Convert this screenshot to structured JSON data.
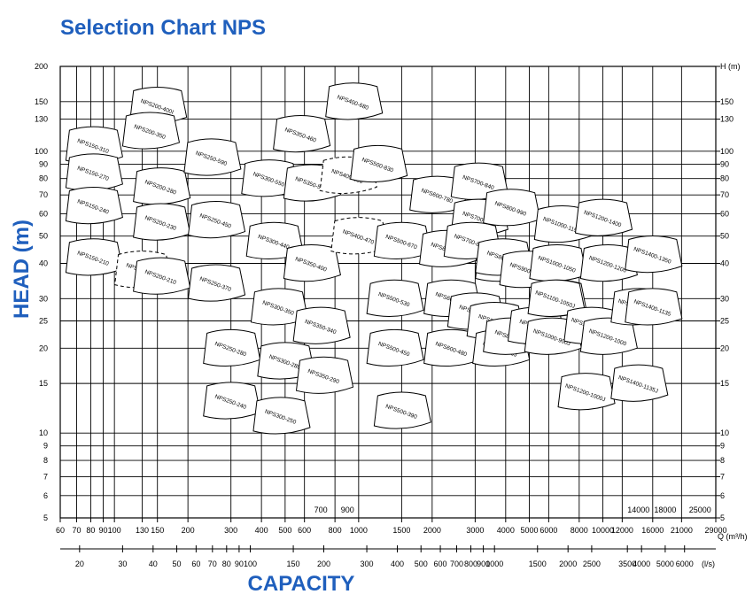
{
  "chart_data": {
    "type": "selection-chart",
    "title": "Selection Chart NPS",
    "ylabel": "HEAD (m)",
    "xlabel": "CAPACITY",
    "y_unit": "H (m)",
    "x_unit_m3h": "Q (m³/h)",
    "x_unit_ls": "(l/s)",
    "x_scale": "log",
    "y_scale": "log",
    "xlim_m3h": [
      60,
      29000
    ],
    "ylim_m": [
      5,
      200
    ],
    "grid": true,
    "y_ticks_left": [
      "5",
      "6",
      "7",
      "8",
      "9",
      "10",
      "15",
      "20",
      "25",
      "30",
      "40",
      "50",
      "60",
      "70",
      "80",
      "90",
      "100",
      "130",
      "150",
      "200"
    ],
    "y_ticks_right": [
      "5",
      "6",
      "7",
      "8",
      "9",
      "10",
      "15",
      "20",
      "25",
      "30",
      "40",
      "50",
      "60",
      "70",
      "80",
      "90",
      "100",
      "130",
      "150",
      "H (m)"
    ],
    "x_ticks_m3h": [
      "60",
      "70",
      "80",
      "90",
      "100",
      "130",
      "150",
      "200",
      "300",
      "400",
      "500",
      "600",
      "800",
      "1000",
      "1500",
      "2000",
      "3000",
      "4000",
      "5000",
      "6000",
      "8000",
      "10000",
      "12000",
      "16000",
      "21000",
      "29000"
    ],
    "x_ticks_ls": [
      "20",
      "30",
      "40",
      "50",
      "60",
      "70",
      "80",
      "90",
      "100",
      "150",
      "200",
      "300",
      "400",
      "500",
      "600",
      "700",
      "800",
      "900",
      "1000",
      "1500",
      "2000",
      "2500",
      "3500",
      "4000",
      "5000",
      "6000"
    ],
    "x_inner_labels": [
      "700",
      "900",
      "14000",
      "18000",
      "25000"
    ],
    "pumps": [
      {
        "name": "NPS200-400I",
        "q": 150,
        "h": 145
      },
      {
        "name": "NPS200-350",
        "q": 140,
        "h": 118
      },
      {
        "name": "NPS150-310",
        "q": 82,
        "h": 105
      },
      {
        "name": "NPS150-270",
        "q": 82,
        "h": 84
      },
      {
        "name": "NPS150-240",
        "q": 82,
        "h": 64
      },
      {
        "name": "NPS150-210",
        "q": 82,
        "h": 42
      },
      {
        "name": "NPS200-280",
        "q": 155,
        "h": 75
      },
      {
        "name": "NPS200-230",
        "q": 155,
        "h": 56
      },
      {
        "name": "NPS200-400",
        "q": 130,
        "h": 38
      },
      {
        "name": "NPS200-210",
        "q": 155,
        "h": 36
      },
      {
        "name": "NPS250-590",
        "q": 250,
        "h": 95
      },
      {
        "name": "NPS250-450",
        "q": 260,
        "h": 57
      },
      {
        "name": "NPS250-370",
        "q": 260,
        "h": 34
      },
      {
        "name": "NPS250-280",
        "q": 300,
        "h": 20
      },
      {
        "name": "NPS250-240",
        "q": 300,
        "h": 13
      },
      {
        "name": "NPS300-550",
        "q": 430,
        "h": 80
      },
      {
        "name": "NPS300-440",
        "q": 450,
        "h": 48
      },
      {
        "name": "NPS300-350",
        "q": 470,
        "h": 28
      },
      {
        "name": "NPS300-280",
        "q": 500,
        "h": 18
      },
      {
        "name": "NPS300-250",
        "q": 480,
        "h": 11.5
      },
      {
        "name": "NPS350-460",
        "q": 580,
        "h": 115
      },
      {
        "name": "NPS350-500",
        "q": 640,
        "h": 77
      },
      {
        "name": "NPS350-400",
        "q": 640,
        "h": 40
      },
      {
        "name": "NPS350-340",
        "q": 700,
        "h": 24
      },
      {
        "name": "NPS350-290",
        "q": 720,
        "h": 16
      },
      {
        "name": "NPS400-680",
        "q": 950,
        "h": 150
      },
      {
        "name": "NPS400-550",
        "q": 900,
        "h": 82
      },
      {
        "name": "NPS400-470",
        "q": 1000,
        "h": 50
      },
      {
        "name": "NPS500-830",
        "q": 1200,
        "h": 90
      },
      {
        "name": "NPS500-670",
        "q": 1500,
        "h": 48
      },
      {
        "name": "NPS500-530",
        "q": 1400,
        "h": 30
      },
      {
        "name": "NPS500-450",
        "q": 1400,
        "h": 20
      },
      {
        "name": "NPS500-390",
        "q": 1500,
        "h": 12
      },
      {
        "name": "NPS600-780",
        "q": 2100,
        "h": 70
      },
      {
        "name": "NPS600-630",
        "q": 2300,
        "h": 45
      },
      {
        "name": "NPS600-540",
        "q": 2400,
        "h": 30
      },
      {
        "name": "NPS600-480",
        "q": 2400,
        "h": 20
      },
      {
        "name": "NPS700-840",
        "q": 3100,
        "h": 78
      },
      {
        "name": "NPS700-740",
        "q": 3100,
        "h": 58
      },
      {
        "name": "NPS700-840J",
        "q": 2900,
        "h": 48
      },
      {
        "name": "NPS700-710",
        "q": 3000,
        "h": 27
      },
      {
        "name": "NPS800-710",
        "q": 3600,
        "h": 25
      },
      {
        "name": "NPS800-840",
        "q": 3900,
        "h": 40
      },
      {
        "name": "NPS800-700J",
        "q": 3800,
        "h": 20
      },
      {
        "name": "NPS800-990",
        "q": 4200,
        "h": 63
      },
      {
        "name": "NPS800-830",
        "q": 3900,
        "h": 42
      },
      {
        "name": "NPS800-700",
        "q": 4200,
        "h": 22
      },
      {
        "name": "NPS900-700J",
        "q": 4900,
        "h": 38
      },
      {
        "name": "NPS900-700",
        "q": 5300,
        "h": 24
      },
      {
        "name": "NPS1000-1150",
        "q": 6800,
        "h": 55
      },
      {
        "name": "NPS1000-1050",
        "q": 6500,
        "h": 40
      },
      {
        "name": "NPS1000-900",
        "q": 6500,
        "h": 30
      },
      {
        "name": "NPS1000-900J",
        "q": 6200,
        "h": 22
      },
      {
        "name": "NPS1100-1050J",
        "q": 6400,
        "h": 30
      },
      {
        "name": "NPS1200-1400",
        "q": 10000,
        "h": 58
      },
      {
        "name": "NPS1200-1200",
        "q": 10500,
        "h": 40
      },
      {
        "name": "NPS1200-1200J",
        "q": 9000,
        "h": 24
      },
      {
        "name": "NPS1200-1000",
        "q": 10500,
        "h": 22
      },
      {
        "name": "NPS1200-1000J",
        "q": 8500,
        "h": 14
      },
      {
        "name": "NPS1400-1350",
        "q": 16000,
        "h": 43
      },
      {
        "name": "NPS1400-1350J",
        "q": 14000,
        "h": 28
      },
      {
        "name": "NPS1400-1135",
        "q": 16000,
        "h": 28
      },
      {
        "name": "NPS1400-1135J",
        "q": 14000,
        "h": 15
      }
    ]
  }
}
